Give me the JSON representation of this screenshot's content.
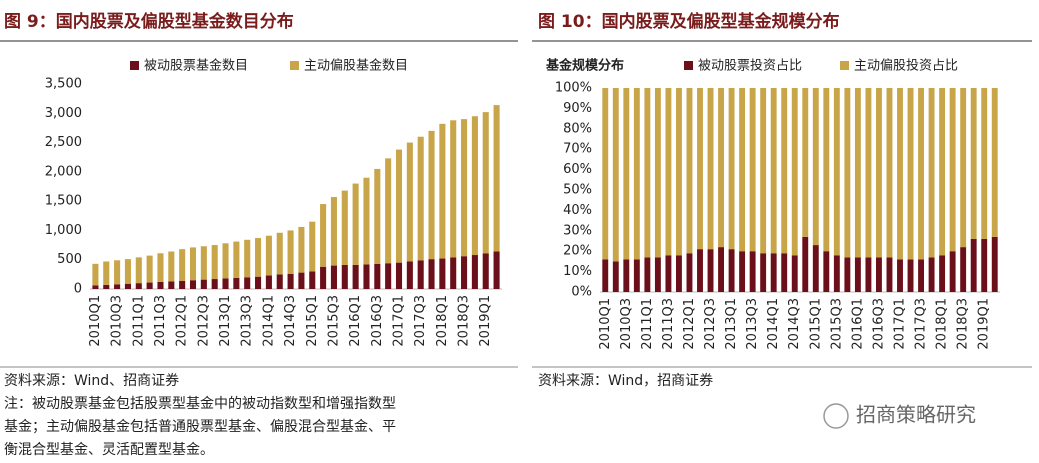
{
  "chart_data": [
    {
      "type": "stacked_bar",
      "title": "图 9：国内股票及偏股型基金数目分布",
      "categories": [
        "2010Q1",
        null,
        "2010Q3",
        null,
        "2011Q1",
        null,
        "2011Q3",
        null,
        "2012Q1",
        null,
        "2012Q3",
        null,
        "2013Q1",
        null,
        "2013Q3",
        null,
        "2014Q1",
        null,
        "2014Q3",
        null,
        "2015Q1",
        null,
        "2015Q3",
        null,
        "2016Q1",
        null,
        "2016Q3",
        null,
        "2017Q1",
        null,
        "2017Q3",
        null,
        "2018Q1",
        null,
        "2018Q3",
        null,
        "2019Q1",
        null
      ],
      "series": [
        {
          "name": "被动股票基金数目",
          "color": "#6b0f1a",
          "values": [
            60,
            70,
            80,
            90,
            100,
            110,
            120,
            130,
            140,
            150,
            160,
            170,
            180,
            190,
            200,
            210,
            230,
            250,
            260,
            280,
            300,
            380,
            400,
            410,
            410,
            420,
            430,
            440,
            450,
            470,
            490,
            510,
            520,
            540,
            560,
            580,
            610,
            640
          ]
        },
        {
          "name": "主动偏股基金数目",
          "color": "#c9a54a",
          "values": [
            370,
            400,
            410,
            420,
            440,
            460,
            490,
            510,
            540,
            560,
            570,
            580,
            600,
            620,
            640,
            660,
            680,
            710,
            740,
            780,
            850,
            1070,
            1170,
            1270,
            1390,
            1480,
            1620,
            1790,
            1930,
            2030,
            2110,
            2190,
            2300,
            2340,
            2340,
            2370,
            2410,
            2500
          ]
        }
      ],
      "ylim": [
        0,
        3500
      ],
      "yticks": [
        0,
        500,
        {
          "value": 1000,
          "label": "1,000"
        },
        {
          "value": 1500,
          "label": "1,500"
        },
        {
          "value": 2000,
          "label": "2,000"
        },
        {
          "value": 2500,
          "label": "2,500"
        },
        {
          "value": 3000,
          "label": "3,000"
        },
        {
          "value": 3500,
          "label": "3,500"
        }
      ],
      "grid": false,
      "source": "资料来源：Wind、招商证券",
      "note": [
        "注：被动股票基金包括股票型基金中的被动指数型和增强指数型",
        "基金；主动偏股基金包括普通股票型基金、偏股混合型基金、平",
        "衡混合型基金、灵活配置型基金。"
      ]
    },
    {
      "type": "stacked_bar",
      "title": "图 10：国内股票及偏股型基金规模分布",
      "y_label": "基金规模分布",
      "categories": [
        "2010Q1",
        null,
        "2010Q3",
        null,
        "2011Q1",
        null,
        "2011Q3",
        null,
        "2012Q1",
        null,
        "2012Q3",
        null,
        "2013Q1",
        null,
        "2013Q3",
        null,
        "2014Q1",
        null,
        "2014Q3",
        null,
        "2015Q1",
        null,
        "2015Q3",
        null,
        "2016Q1",
        null,
        "2016Q3",
        null,
        "2017Q1",
        null,
        "2017Q3",
        null,
        "2018Q1",
        null,
        "2018Q3",
        null,
        "2019Q1",
        null
      ],
      "series": [
        {
          "name": "被动股票投资占比",
          "color": "#6b0f1a",
          "values": [
            16,
            15,
            16,
            16,
            17,
            17,
            18,
            18,
            19,
            21,
            21,
            22,
            21,
            20,
            20,
            19,
            19,
            19,
            18,
            27,
            23,
            20,
            18,
            17,
            17,
            17,
            17,
            17,
            16,
            16,
            16,
            17,
            18,
            20,
            22,
            26,
            26,
            27
          ]
        },
        {
          "name": "主动偏股投资占比",
          "color": "#c9a54a",
          "values": [
            84,
            85,
            84,
            84,
            83,
            83,
            82,
            82,
            81,
            79,
            79,
            78,
            79,
            80,
            80,
            81,
            81,
            81,
            82,
            73,
            77,
            80,
            82,
            83,
            83,
            83,
            83,
            83,
            84,
            84,
            84,
            83,
            82,
            80,
            78,
            74,
            74,
            73
          ]
        }
      ],
      "ylim": [
        0,
        100
      ],
      "yticks": [
        {
          "value": 0,
          "label": "0%"
        },
        {
          "value": 10,
          "label": "10%"
        },
        {
          "value": 20,
          "label": "20%"
        },
        {
          "value": 30,
          "label": "30%"
        },
        {
          "value": 40,
          "label": "40%"
        },
        {
          "value": 50,
          "label": "50%"
        },
        {
          "value": 60,
          "label": "60%"
        },
        {
          "value": 70,
          "label": "70%"
        },
        {
          "value": 80,
          "label": "80%"
        },
        {
          "value": 90,
          "label": "90%"
        },
        {
          "value": 100,
          "label": "100%"
        }
      ],
      "grid": false,
      "source": "资料来源：Wind，招商证券"
    }
  ],
  "watermark": "招商策略研究"
}
